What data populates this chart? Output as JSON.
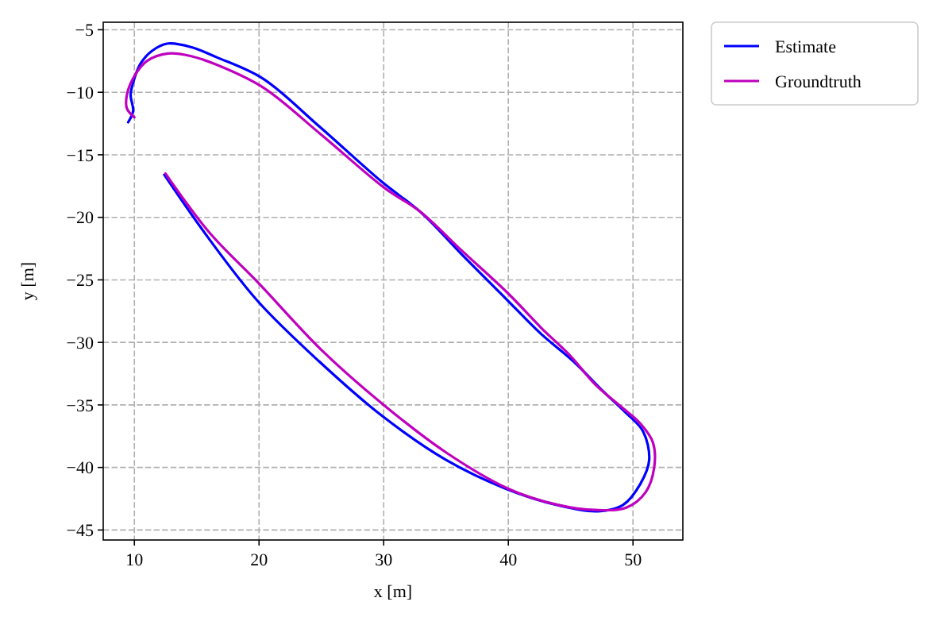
{
  "chart_data": {
    "type": "line",
    "xlabel": "x [m]",
    "ylabel": "y [m]",
    "xlim": [
      7.5,
      54
    ],
    "ylim": [
      -45.8,
      -4.4
    ],
    "xticks": [
      10,
      20,
      30,
      40,
      50
    ],
    "yticks": [
      -5,
      -10,
      -15,
      -20,
      -25,
      -30,
      -35,
      -40,
      -45
    ],
    "grid": true,
    "legend": "top right",
    "line_style": "solid",
    "marker": "none",
    "series": [
      {
        "name": "Estimate",
        "color": "#0000ff",
        "x": [
          12.4,
          15.9,
          19.9,
          24.8,
          29.9,
          35,
          39.8,
          43.9,
          47.2,
          49.2,
          50.6,
          51.3,
          50.8,
          49.4,
          47.7,
          45.2,
          42.6,
          39.8,
          36.2,
          33.1,
          29.9,
          24.8,
          20.3,
          16.6,
          14.6,
          12.7,
          11.4,
          10.5,
          10,
          9.7,
          9.9,
          9.5
        ],
        "values": [
          -16.6,
          -21.6,
          -26.7,
          -31.5,
          -35.9,
          -39.4,
          -41.7,
          -43,
          -43.5,
          -43,
          -41.3,
          -39.4,
          -37.1,
          -35.6,
          -34,
          -31.5,
          -29.3,
          -26.5,
          -22.9,
          -19.7,
          -17.2,
          -12.7,
          -8.9,
          -7.2,
          -6.4,
          -6.1,
          -6.7,
          -7.7,
          -8.9,
          -10.2,
          -11.5,
          -12.4
        ]
      },
      {
        "name": "Groundtruth",
        "color": "#bf00bf",
        "x": [
          12.5,
          16,
          20,
          25,
          30,
          35,
          40,
          44,
          47,
          49.5,
          51,
          51.7,
          51.6,
          50.6,
          49,
          47,
          45,
          42.6,
          40,
          36.2,
          33,
          30,
          25,
          20.3,
          16.6,
          14.5,
          12.7,
          11,
          10,
          9.4,
          9.4,
          10
        ],
        "values": [
          -16.5,
          -21.2,
          -25.3,
          -30.6,
          -35,
          -38.8,
          -41.7,
          -43,
          -43.4,
          -43.2,
          -42,
          -40,
          -38,
          -36.5,
          -35.1,
          -33.4,
          -31.1,
          -28.8,
          -26.1,
          -22.6,
          -19.6,
          -17.6,
          -13.4,
          -9.6,
          -7.8,
          -7.1,
          -6.9,
          -7.5,
          -8.7,
          -10.2,
          -11.3,
          -12
        ]
      }
    ]
  }
}
